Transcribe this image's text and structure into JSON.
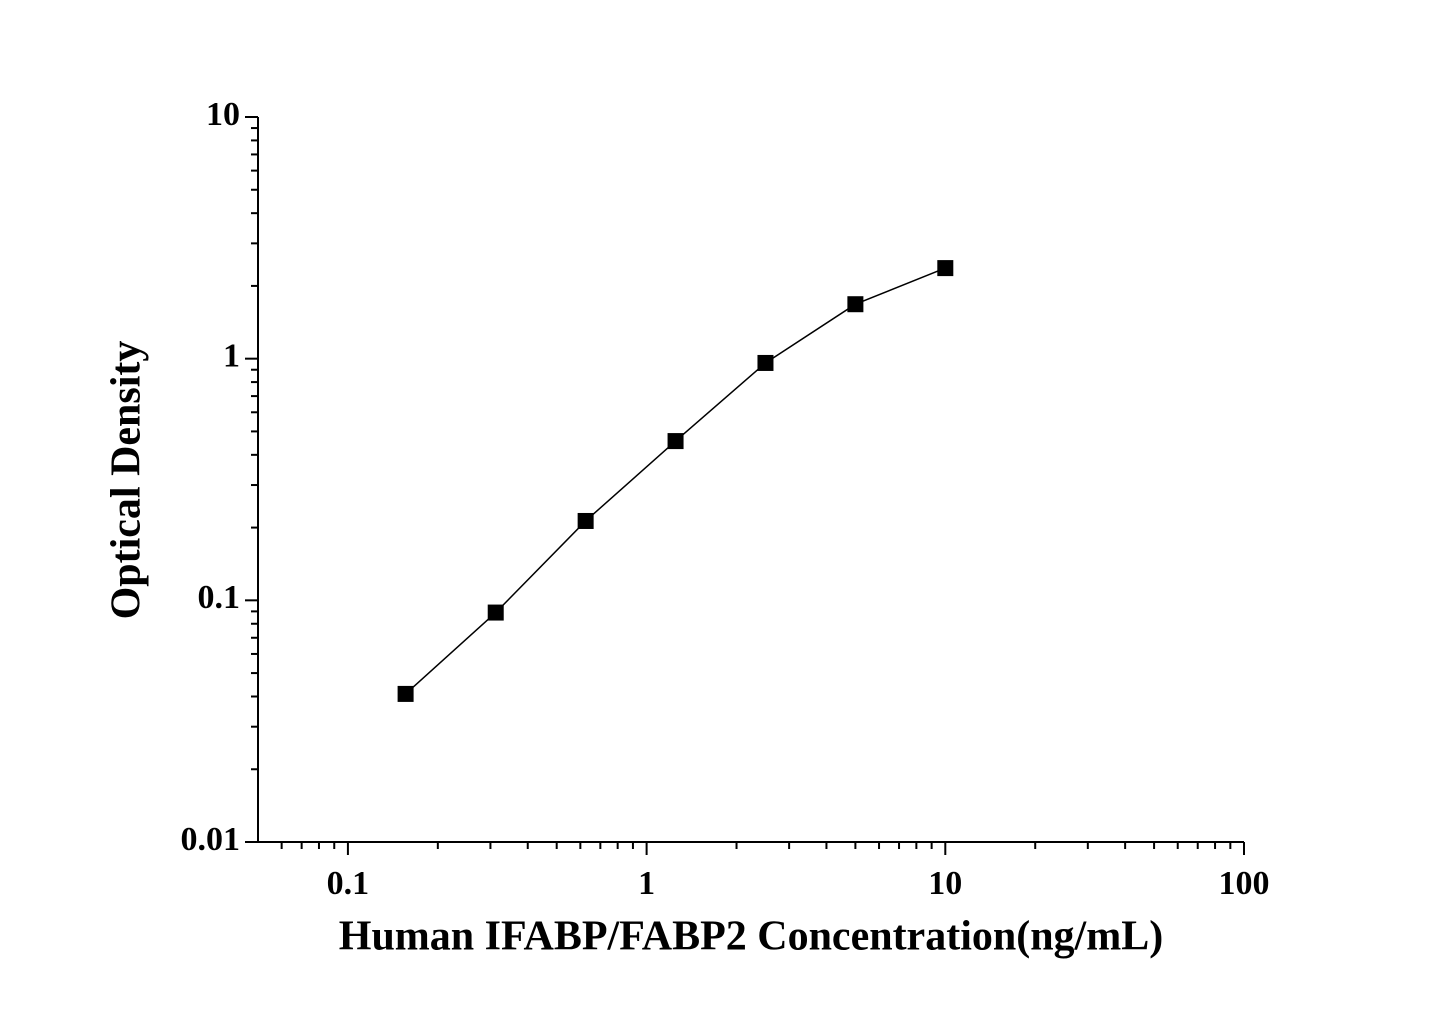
{
  "chart_data": {
    "type": "line",
    "x_label": "Human IFABP/FABP2 Concentration(ng/mL)",
    "y_label": "Optical Density",
    "x": [
      0.156,
      0.3125,
      0.625,
      1.25,
      2.5,
      5,
      10
    ],
    "values": [
      0.041,
      0.089,
      0.213,
      0.456,
      0.96,
      1.68,
      2.37
    ],
    "color": "#000000",
    "xlog": true,
    "ylog": true,
    "xlim": [
      0.05,
      100
    ],
    "ylim": [
      0.01,
      10
    ],
    "xticks": [
      0.1,
      1,
      10,
      100
    ],
    "yticks": [
      0.01,
      0.1,
      1,
      10
    ]
  }
}
